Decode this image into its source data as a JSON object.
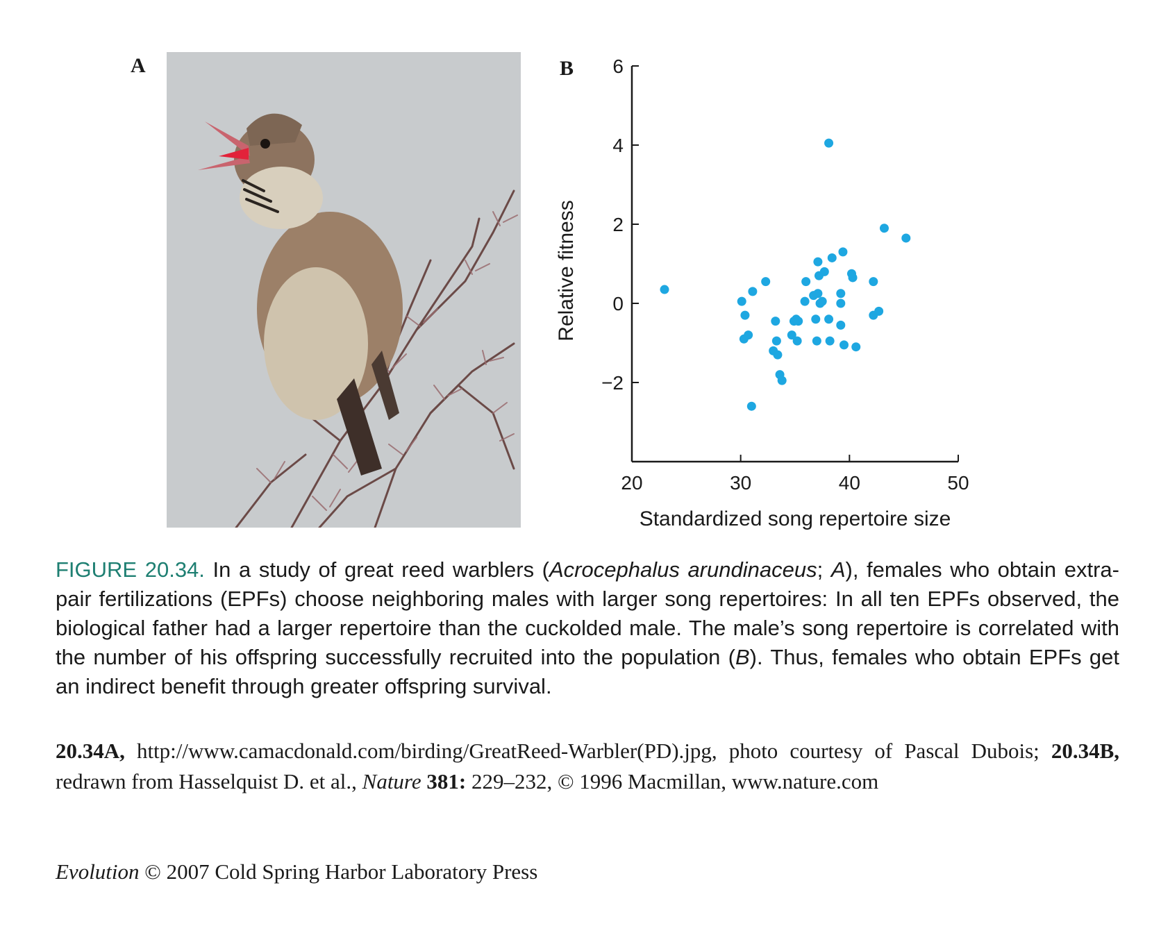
{
  "panels": {
    "a_label": "A",
    "b_label": "B"
  },
  "photo": {
    "description_icon": "great-reed-warbler-photo",
    "sky_color": "#c8cbcd"
  },
  "chart_data": {
    "type": "scatter",
    "title": "",
    "xlabel": "Standardized song repertoire size",
    "ylabel": "Relative fitness",
    "xlim": [
      20,
      50
    ],
    "ylim": [
      -4,
      6
    ],
    "xticks": [
      20,
      30,
      40,
      50
    ],
    "xtick_labels": [
      "20",
      "30",
      "40",
      "50"
    ],
    "yticks": [
      6,
      4,
      2,
      0,
      -2
    ],
    "ytick_labels": [
      "6",
      "4",
      "2",
      "0",
      "−2"
    ],
    "grid": false,
    "point_color": "#1ea7e1",
    "points": [
      {
        "x": 23.0,
        "y": 0.35
      },
      {
        "x": 30.1,
        "y": 0.05
      },
      {
        "x": 30.4,
        "y": -0.3
      },
      {
        "x": 30.3,
        "y": -0.9
      },
      {
        "x": 30.7,
        "y": -0.8
      },
      {
        "x": 31.1,
        "y": 0.3
      },
      {
        "x": 31.0,
        "y": -2.6
      },
      {
        "x": 32.3,
        "y": 0.55
      },
      {
        "x": 33.0,
        "y": -1.2
      },
      {
        "x": 33.2,
        "y": -0.45
      },
      {
        "x": 33.3,
        "y": -0.95
      },
      {
        "x": 33.4,
        "y": -1.3
      },
      {
        "x": 33.6,
        "y": -1.8
      },
      {
        "x": 33.8,
        "y": -1.95
      },
      {
        "x": 34.7,
        "y": -0.8
      },
      {
        "x": 34.9,
        "y": -0.45
      },
      {
        "x": 35.1,
        "y": -0.4
      },
      {
        "x": 35.2,
        "y": -0.95
      },
      {
        "x": 35.3,
        "y": -0.45
      },
      {
        "x": 35.9,
        "y": 0.05
      },
      {
        "x": 36.0,
        "y": 0.55
      },
      {
        "x": 36.7,
        "y": 0.2
      },
      {
        "x": 36.9,
        "y": -0.4
      },
      {
        "x": 37.0,
        "y": -0.95
      },
      {
        "x": 37.1,
        "y": 0.25
      },
      {
        "x": 37.1,
        "y": 1.05
      },
      {
        "x": 37.2,
        "y": 0.7
      },
      {
        "x": 37.3,
        "y": 0.0
      },
      {
        "x": 37.5,
        "y": 0.05
      },
      {
        "x": 37.7,
        "y": 0.8
      },
      {
        "x": 38.1,
        "y": 4.05
      },
      {
        "x": 38.1,
        "y": -0.4
      },
      {
        "x": 38.2,
        "y": -0.95
      },
      {
        "x": 38.4,
        "y": 1.15
      },
      {
        "x": 39.2,
        "y": 0.0
      },
      {
        "x": 39.2,
        "y": 0.25
      },
      {
        "x": 39.2,
        "y": -0.55
      },
      {
        "x": 39.4,
        "y": 1.3
      },
      {
        "x": 39.5,
        "y": -1.05
      },
      {
        "x": 40.2,
        "y": 0.75
      },
      {
        "x": 40.3,
        "y": 0.65
      },
      {
        "x": 40.6,
        "y": -1.1
      },
      {
        "x": 42.2,
        "y": 0.55
      },
      {
        "x": 42.2,
        "y": -0.3
      },
      {
        "x": 42.7,
        "y": -0.2
      },
      {
        "x": 43.2,
        "y": 1.9
      },
      {
        "x": 45.2,
        "y": 1.65
      }
    ]
  },
  "caption": {
    "label": "FIGURE 20.34.",
    "t1": " In a study of great reed warblers (",
    "species": "Acrocephalus arundinaceus",
    "t2": "; ",
    "a_ref": "A",
    "t3": "), females who obtain extra-pair fertilizations (EPFs) choose neighboring males with larger song repertoires: In all ten EPFs observed, the biological father had a larger repertoire than the cuckolded male. The male’s song repertoire is correlated with the number of his offspring successfully recruited into the population (",
    "b_ref": "B",
    "t4": "). Thus, females who obtain EPFs get an indirect benefit through greater offspring survival."
  },
  "credits": {
    "a_label": "20.34A,",
    "a_text": " http://www.camacdonald.com/birding/GreatReed-Warbler(PD).jpg, photo courtesy of Pascal Dubois; ",
    "b_label": "20.34B,",
    "b_text": " redrawn from Hasselquist D. et al., ",
    "journal": "Nature",
    "volume": " 381:",
    "pages": " 229–232, © 1996 Macmillan, www.nature.com"
  },
  "footer": {
    "book": "Evolution",
    "rest": " © 2007 Cold Spring Harbor Laboratory Press"
  }
}
